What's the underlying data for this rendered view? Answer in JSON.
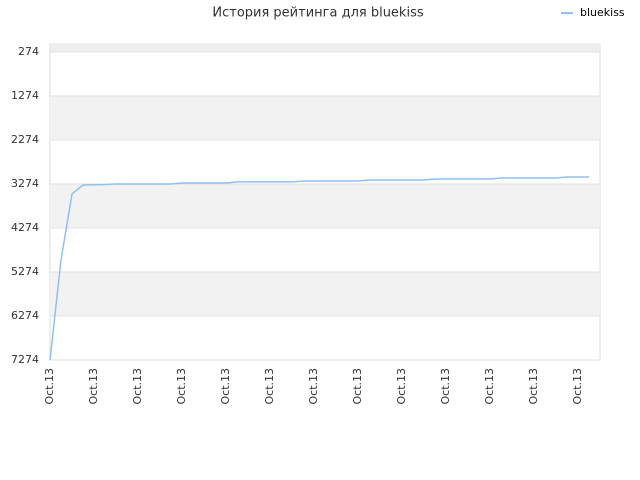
{
  "chart_data": {
    "type": "line",
    "title": "История рейтинга для bluekiss",
    "categories": [
      "Oct.13",
      null,
      null,
      null,
      "Oct.13",
      null,
      null,
      null,
      "Oct.13",
      null,
      null,
      null,
      "Oct.13",
      null,
      null,
      null,
      "Oct.13",
      null,
      null,
      null,
      "Oct.13",
      null,
      null,
      null,
      "Oct.13",
      null,
      null,
      null,
      "Oct.13",
      null,
      null,
      null,
      "Oct.13",
      null,
      null,
      null,
      "Oct.13",
      null,
      null,
      null,
      "Oct.13",
      null,
      null,
      null,
      "Oct.13",
      null,
      null,
      null,
      "Oct.13",
      null
    ],
    "series": [
      {
        "name": "bluekiss",
        "color": "#90c0f0",
        "values": [
          7274,
          5000,
          3500,
          3297,
          3290,
          3285,
          3274,
          3274,
          3274,
          3274,
          3274,
          3274,
          3250,
          3250,
          3250,
          3250,
          3250,
          3227,
          3227,
          3227,
          3227,
          3227,
          3227,
          3205,
          3205,
          3205,
          3205,
          3205,
          3205,
          3183,
          3183,
          3183,
          3183,
          3183,
          3183,
          3160,
          3160,
          3160,
          3160,
          3160,
          3160,
          3138,
          3138,
          3138,
          3138,
          3138,
          3138,
          3115,
          3115,
          3115
        ]
      }
    ],
    "ylim": [
      7274,
      92
    ],
    "yticks": [
      274,
      1274,
      2274,
      3274,
      4274,
      5274,
      6274,
      7274
    ],
    "grid": true,
    "legend": "top-right"
  }
}
